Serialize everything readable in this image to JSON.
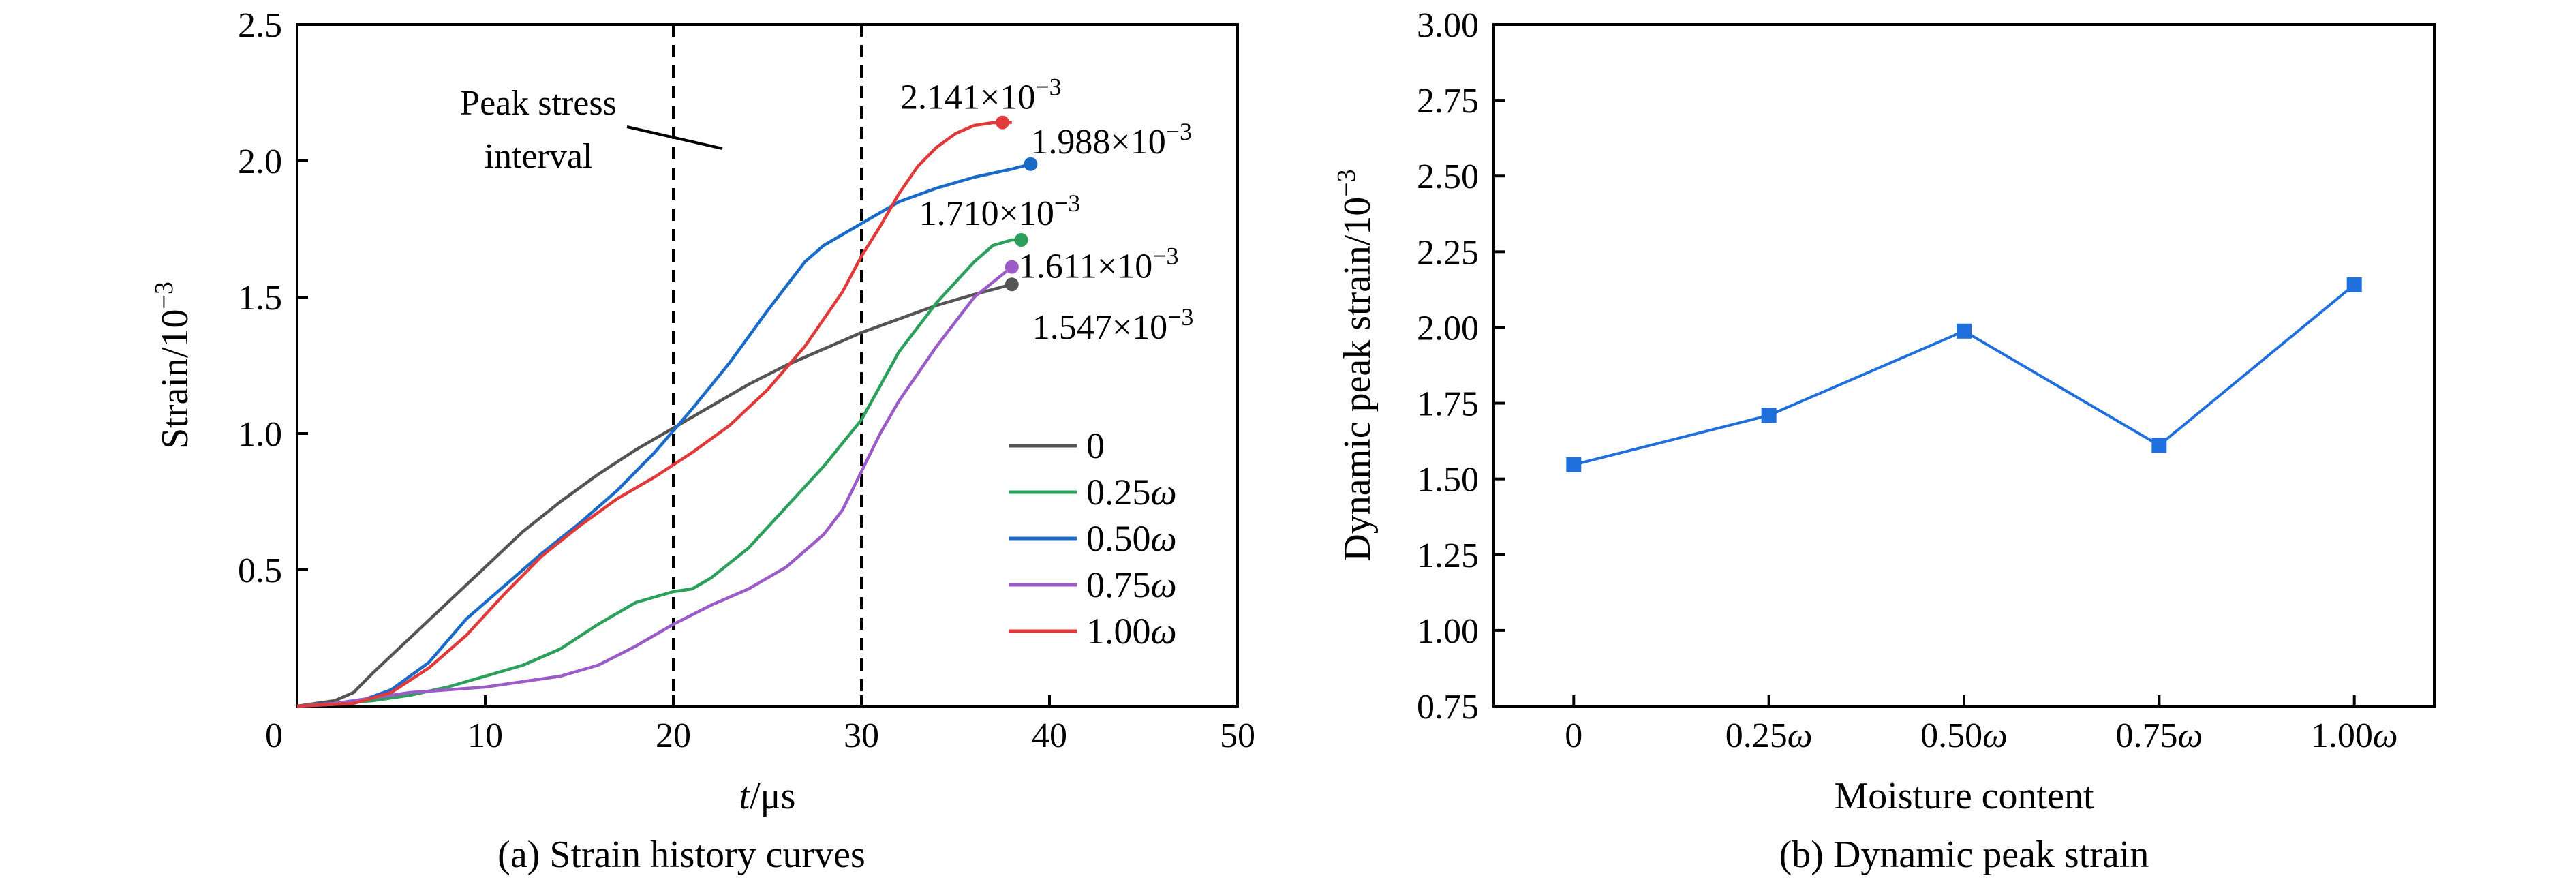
{
  "chart_data": [
    {
      "type": "line",
      "caption": "(a) Strain history curves",
      "xlabel_italic": "t",
      "xlabel_unit": "/μs",
      "ylabel": "Strain/10",
      "ylabel_exp": "−3",
      "xlim": [
        0,
        50
      ],
      "ylim": [
        0,
        2.5
      ],
      "xticks": [
        "0",
        "10",
        "20",
        "30",
        "40",
        "50"
      ],
      "yticks": [
        "0.5",
        "1.0",
        "1.5",
        "2.0",
        "2.5"
      ],
      "ytick_values": [
        0.5,
        1.0,
        1.5,
        2.0,
        2.5
      ],
      "xtick_values": [
        0,
        10,
        20,
        30,
        40,
        50
      ],
      "vlines": [
        20,
        30
      ],
      "interval_label_1": "Peak stress",
      "interval_label_2": "interval",
      "legend_position": "center-right",
      "series": [
        {
          "name": "0",
          "legend_main": "0",
          "legend_ital": "",
          "color": "#555555",
          "x": [
            0,
            2,
            3,
            4,
            6,
            8,
            10,
            12,
            14,
            16,
            18,
            20,
            22,
            24,
            26,
            28,
            30,
            32,
            34,
            36,
            38
          ],
          "y": [
            0,
            0.02,
            0.05,
            0.12,
            0.25,
            0.38,
            0.51,
            0.64,
            0.75,
            0.85,
            0.94,
            1.02,
            1.1,
            1.18,
            1.25,
            1.31,
            1.37,
            1.42,
            1.47,
            1.51,
            1.547
          ],
          "peak": 1.547,
          "peak_x": 38,
          "peak_label": "1.547×10",
          "peak_exp": "−3"
        },
        {
          "name": "0.25ω",
          "legend_main": "0.25",
          "legend_ital": "ω",
          "color": "#2ca05a",
          "x": [
            0,
            2,
            4,
            6,
            8,
            10,
            12,
            14,
            16,
            18,
            20,
            21,
            22,
            24,
            26,
            28,
            30,
            32,
            34,
            36,
            37,
            38,
            38.5
          ],
          "y": [
            0,
            0.01,
            0.02,
            0.04,
            0.07,
            0.11,
            0.15,
            0.21,
            0.3,
            0.38,
            0.42,
            0.43,
            0.47,
            0.58,
            0.73,
            0.88,
            1.05,
            1.3,
            1.48,
            1.63,
            1.69,
            1.71,
            1.71
          ],
          "peak": 1.71,
          "peak_x": 38.5,
          "peak_label": "1.710×10",
          "peak_exp": "−3"
        },
        {
          "name": "0.50ω",
          "legend_main": "0.50",
          "legend_ital": "ω",
          "color": "#1a6bc8",
          "x": [
            0,
            3,
            5,
            7,
            9,
            11,
            13,
            15,
            17,
            19,
            21,
            23,
            25,
            27,
            28,
            30,
            32,
            34,
            36,
            38,
            39
          ],
          "y": [
            0,
            0.01,
            0.06,
            0.16,
            0.32,
            0.44,
            0.56,
            0.67,
            0.79,
            0.93,
            1.09,
            1.26,
            1.45,
            1.63,
            1.69,
            1.77,
            1.85,
            1.9,
            1.94,
            1.97,
            1.988
          ],
          "peak": 1.988,
          "peak_x": 39,
          "peak_label": "1.988×10",
          "peak_exp": "−3"
        },
        {
          "name": "0.75ω",
          "legend_main": "0.75",
          "legend_ital": "ω",
          "color": "#9b5cc8",
          "x": [
            0,
            2,
            4,
            6,
            8,
            10,
            12,
            14,
            16,
            18,
            20,
            22,
            24,
            26,
            28,
            29,
            30,
            31,
            32,
            34,
            36,
            38
          ],
          "y": [
            0,
            0.01,
            0.03,
            0.05,
            0.06,
            0.07,
            0.09,
            0.11,
            0.15,
            0.22,
            0.3,
            0.37,
            0.43,
            0.51,
            0.63,
            0.72,
            0.86,
            1.0,
            1.12,
            1.32,
            1.5,
            1.611
          ],
          "peak": 1.611,
          "peak_x": 38,
          "peak_label": "1.611×10",
          "peak_exp": "−3"
        },
        {
          "name": "1.00ω",
          "legend_main": "1.00",
          "legend_ital": "ω",
          "color": "#e03a3a",
          "x": [
            0,
            3,
            5,
            7,
            9,
            11,
            13,
            15,
            17,
            19,
            21,
            23,
            25,
            27,
            29,
            30,
            31,
            32,
            33,
            34,
            35,
            36,
            37,
            38
          ],
          "y": [
            0,
            0.01,
            0.05,
            0.14,
            0.26,
            0.41,
            0.55,
            0.66,
            0.76,
            0.84,
            0.93,
            1.03,
            1.16,
            1.32,
            1.52,
            1.65,
            1.76,
            1.88,
            1.98,
            2.05,
            2.1,
            2.13,
            2.14,
            2.141
          ],
          "peak": 2.141,
          "peak_x": 37.5,
          "peak_label": "2.141×10",
          "peak_exp": "−3"
        }
      ]
    },
    {
      "type": "line",
      "caption": "(b) Dynamic peak strain",
      "xlabel": "Moisture content",
      "ylabel": "Dynamic peak strain/10",
      "ylabel_exp": "−3",
      "ylim": [
        0.75,
        3.0
      ],
      "yticks": [
        "0.75",
        "1.00",
        "1.25",
        "1.50",
        "1.75",
        "2.00",
        "2.25",
        "2.50",
        "2.75",
        "3.00"
      ],
      "ytick_values": [
        0.75,
        1.0,
        1.25,
        1.5,
        1.75,
        2.0,
        2.25,
        2.5,
        2.75,
        3.0
      ],
      "categories": [
        {
          "main": "0",
          "ital": ""
        },
        {
          "main": "0.25",
          "ital": "ω"
        },
        {
          "main": "0.50",
          "ital": "ω"
        },
        {
          "main": "0.75",
          "ital": "ω"
        },
        {
          "main": "1.00",
          "ital": "ω"
        }
      ],
      "color": "#1f6fdc",
      "values": [
        1.547,
        1.71,
        1.988,
        1.611,
        2.141
      ]
    }
  ]
}
